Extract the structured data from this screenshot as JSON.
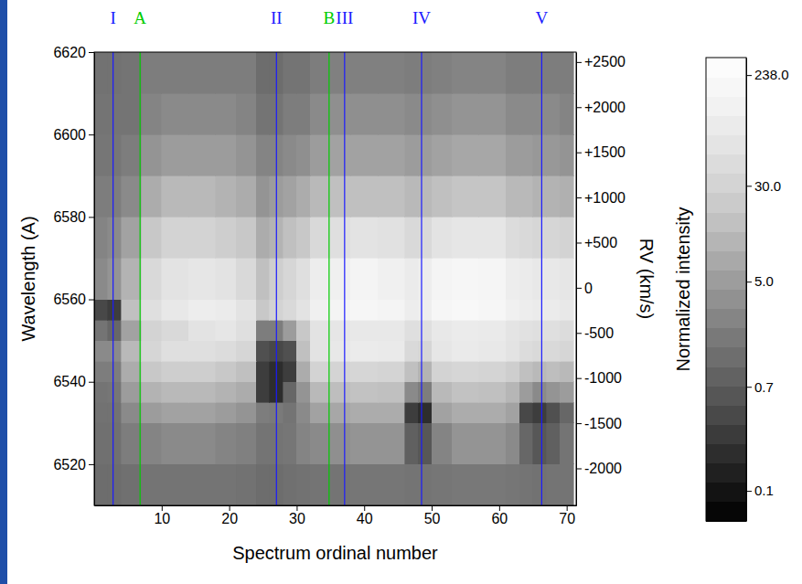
{
  "chart_data": {
    "type": "heatmap",
    "xlabel": "Spectrum ordinal number",
    "ylabel": "Wavelength (A)",
    "y2label": "RV (km/s)",
    "colorbar_label": "Normalized intensity",
    "xlim": [
      0,
      71.4
    ],
    "xticks": [
      10,
      20,
      30,
      40,
      50,
      60,
      70
    ],
    "ylim": [
      6510,
      6620
    ],
    "yticks": [
      6520,
      6540,
      6560,
      6580,
      6600,
      6620
    ],
    "y2lim": [
      -2410,
      2610
    ],
    "y2ticks": [
      -2000,
      -1500,
      -1000,
      -500,
      0,
      {
        "value": 500,
        "label": "+500"
      },
      {
        "value": 1000,
        "label": "+1000"
      },
      {
        "value": 1500,
        "label": "+1500"
      },
      {
        "value": 2000,
        "label": "+2000"
      },
      {
        "value": 2500,
        "label": "+2500"
      }
    ],
    "colorbar_range": [
      0.057,
      330
    ],
    "colorbar_ticks": [
      0.1,
      0.7,
      {
        "value": 5,
        "label": "5.0"
      },
      {
        "value": 30,
        "label": "30.0"
      },
      {
        "value": 238,
        "label": "238.0"
      }
    ],
    "x_edges": [
      0,
      2,
      4,
      7,
      10,
      14,
      18,
      21,
      24,
      26,
      28,
      30,
      32,
      35,
      38,
      42,
      46,
      48,
      50,
      53,
      57,
      61,
      63,
      65,
      67,
      69,
      71
    ],
    "y_edges": [
      6510,
      6520,
      6530,
      6535,
      6540,
      6545,
      6550,
      6555,
      6560,
      6570,
      6580,
      6590,
      6600,
      6610,
      6620
    ],
    "z": [
      [
        1.2,
        1.2,
        1.3,
        1.5,
        1.5,
        1.5,
        1.5,
        1.4,
        1.2,
        1.2,
        1.3,
        1.4,
        1.5,
        1.5,
        1.6,
        1.6,
        1.5,
        1.5,
        1.6,
        1.7,
        1.7,
        1.6,
        1.5,
        1.4,
        1.5,
        1.5
      ],
      [
        1.3,
        1.3,
        2,
        2.5,
        3,
        3,
        2.5,
        2.2,
        1.5,
        1.5,
        1.6,
        2.5,
        3,
        3.5,
        4,
        4,
        0.8,
        0.6,
        2.5,
        4,
        4,
        3,
        1,
        0.6,
        0.8,
        1.5
      ],
      [
        1.4,
        1.4,
        3,
        5,
        6,
        6,
        5,
        4,
        2,
        1.8,
        1.5,
        3,
        6,
        7,
        8,
        8,
        0.3,
        0.2,
        6,
        8,
        8,
        6,
        0.4,
        0.3,
        0.5,
        1
      ],
      [
        1.5,
        1.6,
        5,
        10,
        12,
        12,
        10,
        8,
        0.3,
        0.2,
        1,
        4,
        12,
        14,
        16,
        15,
        3,
        2,
        12,
        16,
        15,
        11,
        5,
        3,
        4,
        5
      ],
      [
        2,
        2,
        8,
        20,
        25,
        25,
        20,
        15,
        0.3,
        0.2,
        0.3,
        8,
        30,
        32,
        35,
        32,
        15,
        10,
        30,
        35,
        32,
        25,
        15,
        12,
        14,
        12
      ],
      [
        3,
        3,
        12,
        35,
        50,
        50,
        45,
        35,
        0.5,
        0.4,
        0.5,
        15,
        60,
        80,
        90,
        85,
        40,
        35,
        70,
        85,
        80,
        60,
        45,
        40,
        40,
        35
      ],
      [
        1.5,
        1,
        6,
        30,
        40,
        60,
        70,
        50,
        2,
        2,
        5,
        20,
        60,
        70,
        80,
        80,
        50,
        50,
        80,
        90,
        85,
        65,
        55,
        50,
        50,
        45
      ],
      [
        0.4,
        0.3,
        15,
        50,
        80,
        100,
        90,
        60,
        20,
        30,
        40,
        60,
        120,
        150,
        180,
        150,
        100,
        110,
        170,
        200,
        180,
        120,
        100,
        90,
        90,
        80
      ],
      [
        3,
        4,
        10,
        40,
        60,
        70,
        60,
        40,
        15,
        25,
        35,
        50,
        100,
        120,
        150,
        120,
        90,
        100,
        150,
        180,
        160,
        100,
        90,
        80,
        80,
        70
      ],
      [
        2.5,
        3,
        6,
        20,
        30,
        30,
        25,
        20,
        8,
        10,
        15,
        20,
        40,
        50,
        60,
        55,
        40,
        40,
        60,
        70,
        70,
        45,
        40,
        35,
        35,
        30
      ],
      [
        2,
        2,
        3,
        8,
        12,
        12,
        10,
        8,
        4,
        5,
        6,
        8,
        12,
        15,
        15,
        15,
        12,
        12,
        15,
        18,
        18,
        12,
        12,
        10,
        10,
        9
      ],
      [
        1.6,
        1.6,
        2,
        4,
        5,
        5,
        5,
        4,
        2.5,
        2.5,
        3,
        3.5,
        5,
        6,
        6,
        6,
        5,
        5,
        6,
        7,
        7,
        5,
        5,
        4.5,
        4.5,
        4
      ],
      [
        1.5,
        1.5,
        1.5,
        2.5,
        3,
        3,
        3,
        2.5,
        1.5,
        1.5,
        2,
        2,
        3,
        3.5,
        3.5,
        3.5,
        3,
        3,
        3.5,
        4,
        4,
        3,
        3,
        3,
        3,
        2.5
      ],
      [
        1.4,
        1.4,
        1.5,
        2,
        2,
        2,
        2,
        2,
        1.2,
        1.2,
        1.5,
        1.5,
        2,
        2.2,
        2.2,
        2.2,
        2,
        2,
        2.2,
        2.5,
        2.5,
        2,
        2,
        2,
        2,
        2
      ]
    ],
    "annotations": [
      {
        "text": "I",
        "x": 2.8,
        "color": "#1a1aff"
      },
      {
        "text": "A",
        "x": 6.8,
        "color": "#00cc00"
      },
      {
        "text": "II",
        "x": 27,
        "color": "#1a1aff"
      },
      {
        "text": "B",
        "x": 34.8,
        "color": "#00cc00"
      },
      {
        "text": "III",
        "x": 37.1,
        "color": "#1a1aff"
      },
      {
        "text": "IV",
        "x": 48.5,
        "color": "#1a1aff"
      },
      {
        "text": "V",
        "x": 66.3,
        "color": "#1a1aff"
      }
    ]
  }
}
